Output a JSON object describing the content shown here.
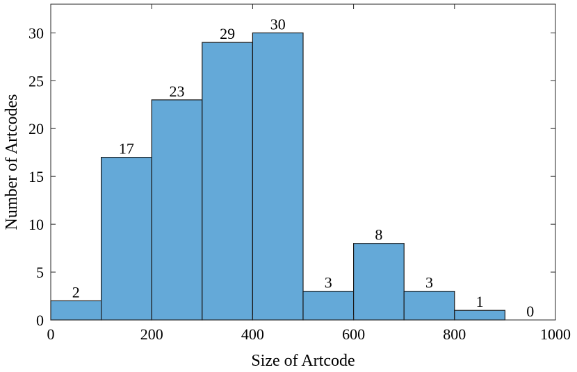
{
  "chart_data": {
    "type": "bar",
    "subtype": "histogram",
    "xlabel": "Size of Artcode",
    "ylabel": "Number of Artcodes",
    "bin_edges": [
      0,
      100,
      200,
      300,
      400,
      500,
      600,
      700,
      800,
      900,
      1000
    ],
    "values": [
      2,
      17,
      23,
      29,
      30,
      3,
      8,
      3,
      1,
      0
    ],
    "xlim": [
      0,
      1000
    ],
    "ylim": [
      0,
      33
    ],
    "xticks": [
      0,
      200,
      400,
      600,
      800,
      1000
    ],
    "yticks": [
      0,
      5,
      10,
      15,
      20,
      25,
      30
    ],
    "data_labels": [
      "2",
      "17",
      "23",
      "29",
      "30",
      "3",
      "8",
      "3",
      "1",
      "0"
    ],
    "bar_color": "#64a9d8",
    "bar_edge_color": "#1a1a1a",
    "grid": false,
    "legend": "none"
  }
}
